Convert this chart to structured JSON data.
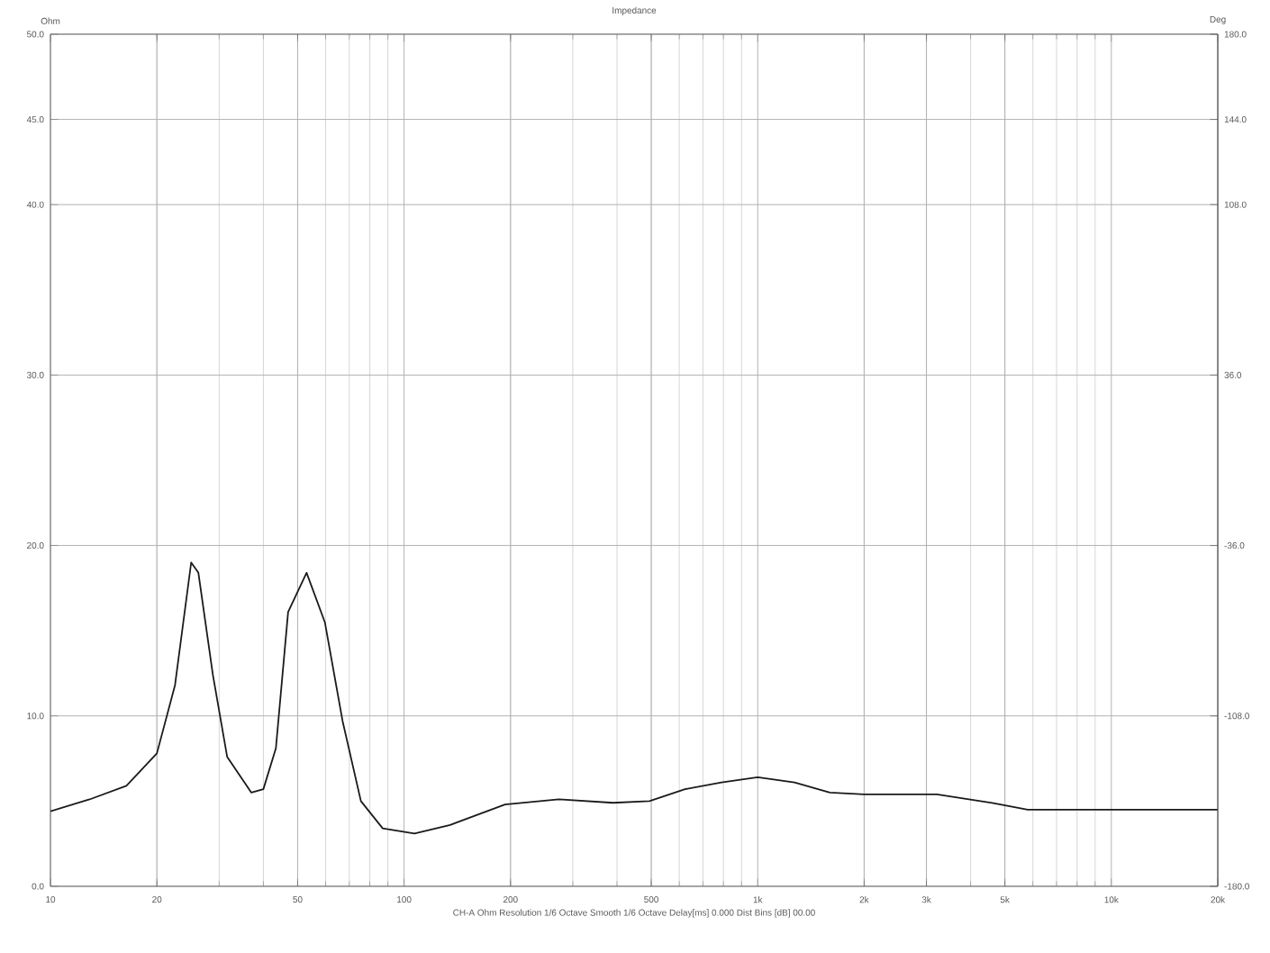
{
  "chart_data": {
    "type": "line",
    "title": "Impedance",
    "ylabel": "Ohm",
    "y2label": "Deg",
    "log": "x",
    "grid": true,
    "marker": "none",
    "line_style": "solid",
    "xlim": [
      10,
      20000
    ],
    "xticks": [
      10,
      20,
      50,
      100,
      200,
      500,
      {
        "value": 1000,
        "label": "1k"
      },
      {
        "value": 2000,
        "label": "2k"
      },
      {
        "value": 3000,
        "label": "3k"
      },
      {
        "value": 5000,
        "label": "5k"
      },
      {
        "value": 10000,
        "label": "10k"
      },
      {
        "value": 20000,
        "label": "20k"
      }
    ],
    "ylim": [
      0,
      50
    ],
    "yticks": [
      {
        "value": 0,
        "label": "0.0"
      },
      {
        "value": 10,
        "label": "10.0"
      },
      {
        "value": 20,
        "label": "20.0"
      },
      {
        "value": 30,
        "label": "30.0"
      },
      {
        "value": 40,
        "label": "40.0"
      },
      {
        "value": 45,
        "label": "45.0"
      },
      {
        "value": 50,
        "label": "50.0"
      }
    ],
    "y2lim": [
      -180,
      180
    ],
    "y2ticks": [
      {
        "value": -180,
        "label": "-180.0"
      },
      {
        "value": -108,
        "label": "-108.0"
      },
      {
        "value": -36,
        "label": "-36.0"
      },
      {
        "value": 36,
        "label": "36.0"
      },
      {
        "value": 108,
        "label": "108.0"
      },
      {
        "value": 144,
        "label": "144.0"
      },
      {
        "value": 180,
        "label": "180.0"
      }
    ],
    "x": [
      10,
      12.9,
      16.4,
      20,
      22.5,
      25,
      26.2,
      28.8,
      31.6,
      37,
      40,
      43.4,
      47,
      53,
      59.7,
      67,
      75.5,
      87,
      107,
      135,
      193,
      274,
      390,
      494,
      623,
      790,
      1000,
      1270,
      1600,
      2000,
      3210,
      4600,
      5800,
      10000,
      20000
    ],
    "series": [
      {
        "color": "#1a1a1a",
        "values": [
          4.4,
          5.1,
          5.9,
          7.8,
          11.8,
          19.0,
          18.4,
          12.4,
          7.6,
          5.5,
          5.7,
          8.1,
          16.1,
          18.4,
          15.5,
          9.7,
          5.0,
          3.4,
          3.1,
          3.6,
          4.8,
          5.1,
          4.9,
          5.0,
          5.7,
          6.1,
          6.4,
          6.1,
          5.5,
          5.4,
          5.4,
          4.9,
          4.5,
          4.5,
          4.5
        ]
      }
    ],
    "annotations": [
      "CH-A  Ohm  Resolution 1/6 Octave  Smooth 1/6 Octave  Delay[ms] 0.000  Dist Bins [dB] 00.00"
    ]
  }
}
